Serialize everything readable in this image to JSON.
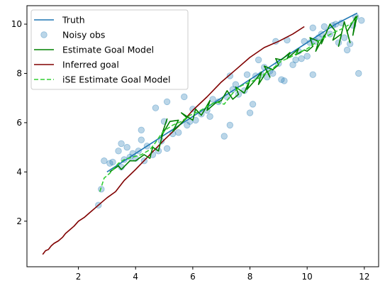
{
  "chart_data": {
    "type": "line",
    "xlim": [
      0.2,
      12.5
    ],
    "ylim": [
      0.15,
      10.75
    ],
    "xticks": [
      2,
      4,
      6,
      8,
      10,
      12
    ],
    "yticks": [
      2,
      4,
      6,
      8,
      10
    ],
    "grid": false,
    "legend_position": "upper-left",
    "series": [
      {
        "name": "Truth",
        "kind": "line",
        "color": "#1f77b4",
        "style": "solid",
        "x": [
          3.0,
          4.0,
          5.0,
          6.0,
          7.0,
          8.0,
          9.0,
          10.0,
          11.0,
          11.75
        ],
        "y": [
          4.0,
          4.75,
          5.5,
          6.25,
          7.0,
          7.75,
          8.5,
          9.25,
          10.0,
          10.45
        ]
      },
      {
        "name": "Noisy obs",
        "kind": "scatter",
        "color": "#1f77b4",
        "x": [
          2.7,
          2.8,
          2.9,
          3.1,
          3.2,
          3.4,
          3.5,
          3.5,
          3.6,
          3.7,
          3.8,
          3.9,
          4.0,
          4.1,
          4.2,
          4.2,
          4.3,
          4.4,
          4.6,
          4.7,
          4.8,
          4.9,
          5.0,
          5.1,
          5.1,
          5.3,
          5.5,
          5.7,
          5.8,
          5.9,
          6.0,
          6.1,
          6.3,
          6.5,
          6.6,
          6.7,
          6.9,
          7.1,
          7.2,
          7.3,
          7.3,
          7.4,
          7.5,
          7.6,
          7.8,
          7.9,
          8.0,
          8.1,
          8.2,
          8.3,
          8.4,
          8.5,
          8.6,
          8.7,
          8.8,
          8.9,
          9.0,
          9.1,
          9.2,
          9.3,
          9.5,
          9.6,
          9.7,
          9.8,
          9.9,
          10.0,
          10.1,
          10.2,
          10.2,
          10.3,
          10.4,
          10.5,
          10.6,
          10.8,
          10.9,
          11.0,
          11.1,
          11.2,
          11.3,
          11.4,
          11.5,
          11.6,
          11.7,
          11.8,
          11.9
        ],
        "y": [
          2.65,
          3.3,
          4.45,
          4.35,
          4.4,
          4.85,
          5.15,
          4.2,
          4.5,
          5.0,
          4.6,
          4.75,
          4.55,
          4.85,
          5.3,
          5.7,
          4.45,
          5.05,
          4.7,
          6.6,
          4.85,
          5.25,
          6.05,
          4.95,
          6.85,
          5.55,
          5.6,
          7.05,
          5.9,
          6.05,
          6.55,
          6.1,
          6.35,
          6.5,
          6.25,
          6.95,
          6.85,
          5.45,
          7.05,
          7.9,
          5.9,
          7.35,
          7.55,
          7.15,
          7.3,
          7.95,
          6.4,
          6.75,
          7.9,
          8.55,
          7.95,
          8.25,
          7.85,
          8.1,
          8.0,
          9.3,
          8.4,
          7.75,
          7.7,
          9.35,
          8.35,
          8.55,
          8.9,
          8.6,
          9.3,
          8.7,
          9.25,
          7.95,
          9.85,
          9.3,
          9.45,
          9.6,
          9.9,
          9.6,
          9.95,
          10.0,
          9.25,
          10.05,
          9.45,
          8.95,
          9.2,
          9.95,
          10.3,
          8.0,
          10.15
        ],
        "alpha": 0.3
      },
      {
        "name": "Estimate Goal Model",
        "kind": "line",
        "color": "#008000",
        "style": "solid",
        "x": [
          3.1,
          3.4,
          3.5,
          3.8,
          4.0,
          4.3,
          4.5,
          4.6,
          4.8,
          5.0,
          5.1,
          4.9,
          5.2,
          5.5,
          5.3,
          5.8,
          5.6,
          6.0,
          6.1,
          6.3,
          6.6,
          6.5,
          6.8,
          7.0,
          7.2,
          7.4,
          7.6,
          7.5,
          7.8,
          8.0,
          7.9,
          8.2,
          8.4,
          8.3,
          8.6,
          8.7,
          8.5,
          8.8,
          9.0,
          8.9,
          9.1,
          9.4,
          9.3,
          9.7,
          9.6,
          9.9,
          10.0,
          10.2,
          10.1,
          10.4,
          10.3,
          10.6,
          10.5,
          10.8,
          11.0,
          10.9,
          11.2,
          11.1,
          11.3,
          11.5,
          11.4,
          11.7,
          11.6,
          11.75
        ],
        "y": [
          4.0,
          4.25,
          4.1,
          4.45,
          4.45,
          4.7,
          4.55,
          5.0,
          4.85,
          5.8,
          6.15,
          5.45,
          6.05,
          6.1,
          5.65,
          6.2,
          6.4,
          6.1,
          6.55,
          6.3,
          6.9,
          6.5,
          6.8,
          6.9,
          7.3,
          6.95,
          7.15,
          7.45,
          7.2,
          7.75,
          7.35,
          7.75,
          8.05,
          7.55,
          8.1,
          7.85,
          8.3,
          8.15,
          8.35,
          8.6,
          8.55,
          8.85,
          8.6,
          9.0,
          8.75,
          8.95,
          8.9,
          9.1,
          9.45,
          9.3,
          8.9,
          9.55,
          9.2,
          10.0,
          9.7,
          9.35,
          9.6,
          9.1,
          10.1,
          9.25,
          9.7,
          10.3,
          9.55,
          10.35
        ]
      },
      {
        "name": "Inferred goal",
        "kind": "line",
        "color": "#800000",
        "style": "solid",
        "x": [
          0.75,
          0.85,
          0.95,
          1.05,
          1.15,
          1.3,
          1.45,
          1.55,
          1.7,
          1.85,
          2.0,
          2.2,
          2.4,
          2.6,
          2.8,
          3.0,
          3.3,
          3.6,
          4.0,
          4.5,
          5.0,
          5.5,
          6.0,
          6.5,
          7.0,
          7.5,
          8.0,
          8.5,
          9.0,
          9.5,
          9.9
        ],
        "y": [
          0.65,
          0.8,
          0.85,
          1.0,
          1.1,
          1.2,
          1.35,
          1.5,
          1.65,
          1.8,
          2.0,
          2.15,
          2.35,
          2.55,
          2.75,
          2.95,
          3.2,
          3.65,
          4.1,
          4.7,
          5.3,
          5.85,
          6.5,
          7.05,
          7.65,
          8.15,
          8.65,
          9.05,
          9.3,
          9.6,
          9.9
        ]
      },
      {
        "name": "iSE Estimate Goal Model",
        "kind": "line",
        "color": "#32cd32",
        "style": "dashed",
        "x": [
          2.75,
          2.9,
          3.1,
          3.4,
          3.6,
          3.9,
          4.2,
          4.5,
          4.7,
          4.9,
          5.1,
          5.3,
          5.6,
          5.9,
          6.2,
          6.5,
          6.8,
          7.1,
          7.4,
          7.7,
          8.0,
          8.3,
          8.6,
          8.8,
          9.1,
          9.4,
          9.7,
          10.0,
          10.3,
          10.6,
          10.9,
          11.2,
          11.5,
          11.75
        ],
        "y": [
          3.2,
          3.75,
          3.95,
          4.35,
          4.5,
          4.6,
          4.7,
          4.9,
          5.2,
          5.55,
          5.75,
          5.9,
          6.05,
          6.3,
          6.45,
          6.65,
          6.85,
          6.75,
          7.2,
          7.5,
          7.65,
          7.8,
          8.05,
          8.2,
          8.5,
          8.65,
          8.85,
          9.0,
          9.25,
          9.45,
          9.65,
          9.8,
          10.0,
          10.25
        ]
      }
    ]
  }
}
